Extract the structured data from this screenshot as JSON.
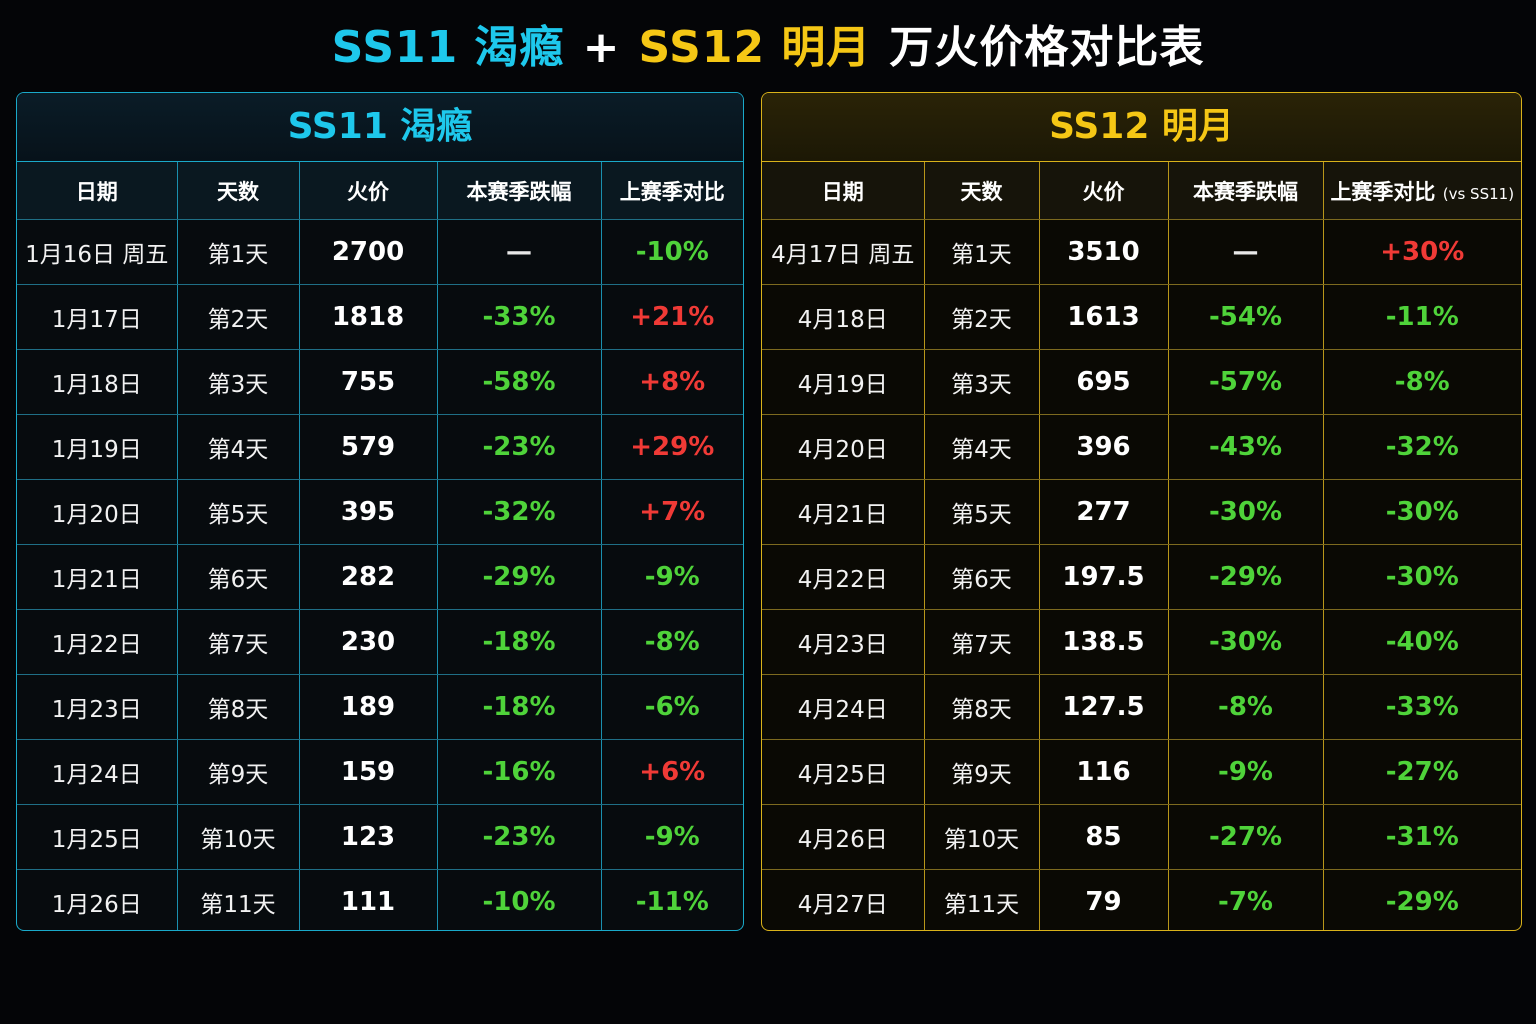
{
  "title": {
    "part1": "SS11 渴瘾",
    "plus": "+",
    "part2": "SS12 明月",
    "part3": "万火价格对比表"
  },
  "colors": {
    "ss11_accent": "#1ec8ec",
    "ss12_accent": "#f5c715",
    "up": "#f03a36",
    "down": "#4fd33a"
  },
  "ss11": {
    "title": "SS11 渴瘾",
    "headers": [
      "日期",
      "天数",
      "火价",
      "本赛季跌幅",
      "上赛季对比"
    ],
    "rows": [
      {
        "date": "1月16日 周五",
        "day": "第1天",
        "price": "2700",
        "drop": "—",
        "compare": "-10%"
      },
      {
        "date": "1月17日",
        "day": "第2天",
        "price": "1818",
        "drop": "-33%",
        "compare": "+21%"
      },
      {
        "date": "1月18日",
        "day": "第3天",
        "price": "755",
        "drop": "-58%",
        "compare": "+8%"
      },
      {
        "date": "1月19日",
        "day": "第4天",
        "price": "579",
        "drop": "-23%",
        "compare": "+29%"
      },
      {
        "date": "1月20日",
        "day": "第5天",
        "price": "395",
        "drop": "-32%",
        "compare": "+7%"
      },
      {
        "date": "1月21日",
        "day": "第6天",
        "price": "282",
        "drop": "-29%",
        "compare": "-9%"
      },
      {
        "date": "1月22日",
        "day": "第7天",
        "price": "230",
        "drop": "-18%",
        "compare": "-8%"
      },
      {
        "date": "1月23日",
        "day": "第8天",
        "price": "189",
        "drop": "-18%",
        "compare": "-6%"
      },
      {
        "date": "1月24日",
        "day": "第9天",
        "price": "159",
        "drop": "-16%",
        "compare": "+6%"
      },
      {
        "date": "1月25日",
        "day": "第10天",
        "price": "123",
        "drop": "-23%",
        "compare": "-9%"
      },
      {
        "date": "1月26日",
        "day": "第11天",
        "price": "111",
        "drop": "-10%",
        "compare": "-11%"
      }
    ]
  },
  "ss12": {
    "title": "SS12 明月",
    "headers": [
      "日期",
      "天数",
      "火价",
      "本赛季跌幅",
      "上赛季对比"
    ],
    "header_vs_note": "(vs SS11)",
    "rows": [
      {
        "date": "4月17日 周五",
        "day": "第1天",
        "price": "3510",
        "drop": "—",
        "compare": "+30%"
      },
      {
        "date": "4月18日",
        "day": "第2天",
        "price": "1613",
        "drop": "-54%",
        "compare": "-11%"
      },
      {
        "date": "4月19日",
        "day": "第3天",
        "price": "695",
        "drop": "-57%",
        "compare": "-8%"
      },
      {
        "date": "4月20日",
        "day": "第4天",
        "price": "396",
        "drop": "-43%",
        "compare": "-32%"
      },
      {
        "date": "4月21日",
        "day": "第5天",
        "price": "277",
        "drop": "-30%",
        "compare": "-30%"
      },
      {
        "date": "4月22日",
        "day": "第6天",
        "price": "197.5",
        "drop": "-29%",
        "compare": "-30%"
      },
      {
        "date": "4月23日",
        "day": "第7天",
        "price": "138.5",
        "drop": "-30%",
        "compare": "-40%"
      },
      {
        "date": "4月24日",
        "day": "第8天",
        "price": "127.5",
        "drop": "-8%",
        "compare": "-33%"
      },
      {
        "date": "4月25日",
        "day": "第9天",
        "price": "116",
        "drop": "-9%",
        "compare": "-27%"
      },
      {
        "date": "4月26日",
        "day": "第10天",
        "price": "85",
        "drop": "-27%",
        "compare": "-31%"
      },
      {
        "date": "4月27日",
        "day": "第11天",
        "price": "79",
        "drop": "-7%",
        "compare": "-29%"
      }
    ]
  }
}
